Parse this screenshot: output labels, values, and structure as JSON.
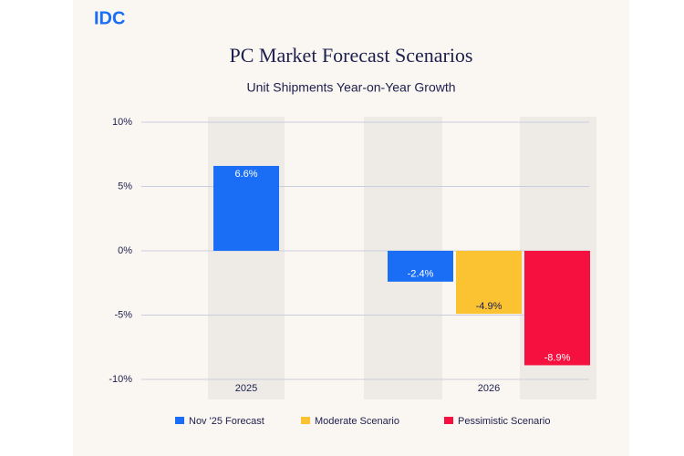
{
  "logo": "IDC",
  "chart_data": {
    "type": "bar",
    "title": "PC Market Forecast Scenarios",
    "subtitle": "Unit Shipments Year-on-Year Growth",
    "categories": [
      "2025",
      "2026"
    ],
    "series": [
      {
        "name": "Nov '25 Forecast",
        "color": "#1a6ef5",
        "label_color": "#ffffff",
        "values": [
          6.6,
          -2.4
        ],
        "value_labels": [
          "6.6%",
          "-2.4%"
        ]
      },
      {
        "name": "Moderate Scenario",
        "color": "#fbc232",
        "label_color": "#1d1f4e",
        "values": [
          null,
          -4.9
        ],
        "value_labels": [
          null,
          "-4.9%"
        ]
      },
      {
        "name": "Pessimistic Scenario",
        "color": "#f5103f",
        "label_color": "#ffffff",
        "values": [
          null,
          -8.9
        ],
        "value_labels": [
          null,
          "-8.9%"
        ]
      }
    ],
    "ylim": [
      -10,
      10
    ],
    "yticks": [
      {
        "value": 10,
        "label": "10%"
      },
      {
        "value": 5,
        "label": "5%"
      },
      {
        "value": 0,
        "label": "0%"
      },
      {
        "value": -5,
        "label": "-5%"
      },
      {
        "value": -10,
        "label": "-10%"
      }
    ],
    "grid": true
  }
}
